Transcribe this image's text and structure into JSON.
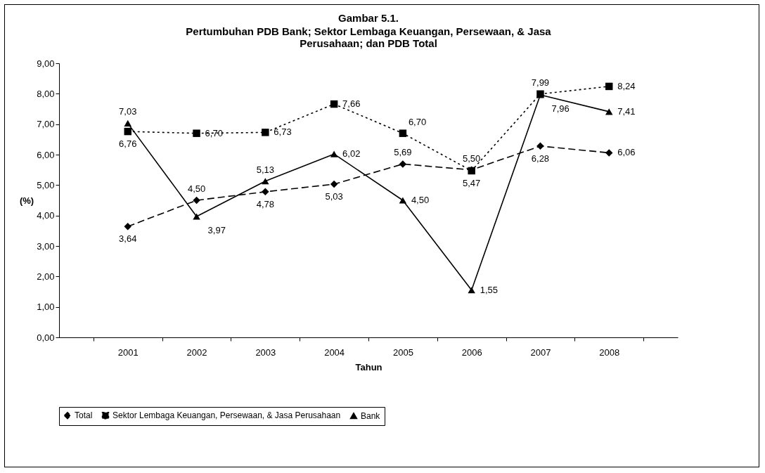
{
  "chart_data": {
    "type": "line",
    "title": "Gambar 5.1.",
    "subtitle": "Pertumbuhan PDB Bank; Sektor Lembaga Keuangan, Persewaan, & Jasa Perusahaan; dan PDB Total",
    "xlabel": "Tahun",
    "ylabel": "(%)",
    "categories": [
      "2001",
      "2002",
      "2003",
      "2004",
      "2005",
      "2006",
      "2007",
      "2008"
    ],
    "ylim": [
      0,
      9
    ],
    "yticks": [
      {
        "value": 0,
        "label": "0,00"
      },
      {
        "value": 1,
        "label": "1,00"
      },
      {
        "value": 2,
        "label": "2,00"
      },
      {
        "value": 3,
        "label": "3,00"
      },
      {
        "value": 4,
        "label": "4,00"
      },
      {
        "value": 5,
        "label": "5,00"
      },
      {
        "value": 6,
        "label": "6,00"
      },
      {
        "value": 7,
        "label": "7,00"
      },
      {
        "value": 8,
        "label": "8,00"
      },
      {
        "value": 9,
        "label": "9,00"
      }
    ],
    "legend": "bottom",
    "series": [
      {
        "name": "Total",
        "color": "#000000",
        "marker": "diamond",
        "line_style": "dashed",
        "values": [
          3.64,
          4.5,
          4.78,
          5.03,
          5.69,
          5.5,
          6.28,
          6.06
        ],
        "value_labels": [
          "3,64",
          "4,50",
          "4,78",
          "5,03",
          "5,69",
          "5,50",
          "6,28",
          "6,06"
        ]
      },
      {
        "name": "Sektor Lembaga Keuangan, Persewaan, & Jasa Perusahaan",
        "color": "#000000",
        "marker": "square",
        "line_style": "dotted",
        "values": [
          6.76,
          6.7,
          6.73,
          7.66,
          6.7,
          5.47,
          7.99,
          8.24
        ],
        "value_labels": [
          "6,76",
          "6,70",
          "6,73",
          "7,66",
          "6,70",
          "5,47",
          "7,99",
          "8,24"
        ]
      },
      {
        "name": "Bank",
        "color": "#000000",
        "marker": "triangle",
        "line_style": "solid",
        "values": [
          7.03,
          3.97,
          5.13,
          6.02,
          4.5,
          1.55,
          7.96,
          7.41
        ],
        "value_labels": [
          "7,03",
          "3,97",
          "5,13",
          "6,02",
          "4,50",
          "1,55",
          "7,96",
          "7,41"
        ]
      }
    ]
  }
}
